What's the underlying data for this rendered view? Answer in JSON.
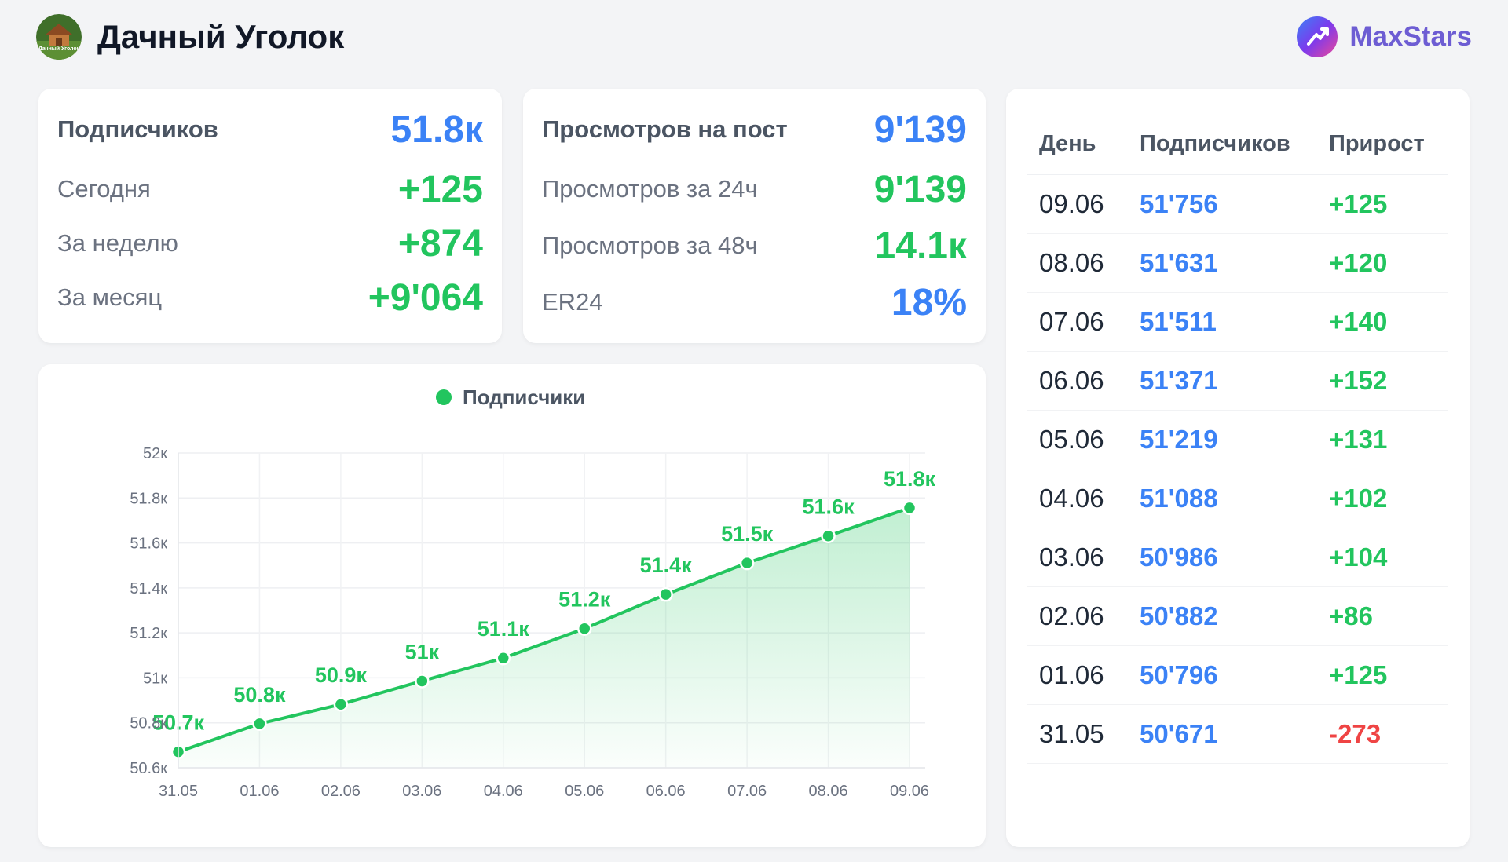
{
  "header": {
    "channel_title": "Дачный Уголок",
    "channel_logo_text": "Дачный Уголок",
    "brand_name": "MaxStars",
    "brand_color": "#6d5dd3"
  },
  "subscribers_card": {
    "title": "Подписчиков",
    "value": "51.8к",
    "rows": [
      {
        "label": "Сегодня",
        "value": "+125"
      },
      {
        "label": "За неделю",
        "value": "+874"
      },
      {
        "label": "За месяц",
        "value": "+9'064"
      }
    ]
  },
  "views_card": {
    "title": "Просмотров на пост",
    "value": "9'139",
    "rows": [
      {
        "label": "Просмотров за 24ч",
        "value": "9'139"
      },
      {
        "label": "Просмотров за 48ч",
        "value": "14.1к"
      },
      {
        "label": "ER24",
        "value": "18%"
      }
    ]
  },
  "table": {
    "headers": [
      "День",
      "Подписчиков",
      "Прирост"
    ],
    "rows": [
      {
        "day": "09.06",
        "subs": "51'756",
        "growth": "+125"
      },
      {
        "day": "08.06",
        "subs": "51'631",
        "growth": "+120"
      },
      {
        "day": "07.06",
        "subs": "51'511",
        "growth": "+140"
      },
      {
        "day": "06.06",
        "subs": "51'371",
        "growth": "+152"
      },
      {
        "day": "05.06",
        "subs": "51'219",
        "growth": "+131"
      },
      {
        "day": "04.06",
        "subs": "51'088",
        "growth": "+102"
      },
      {
        "day": "03.06",
        "subs": "50'986",
        "growth": "+104"
      },
      {
        "day": "02.06",
        "subs": "50'882",
        "growth": "+86"
      },
      {
        "day": "01.06",
        "subs": "50'796",
        "growth": "+125"
      },
      {
        "day": "31.05",
        "subs": "50'671",
        "growth": "-273"
      }
    ]
  },
  "colors": {
    "blue": "#3b82f6",
    "green": "#22c55e",
    "red": "#ef4444"
  },
  "chart_data": {
    "type": "area",
    "title": "",
    "legend": [
      "Подписчики"
    ],
    "legend_position": "top-center",
    "grid": true,
    "categories": [
      "31.05",
      "01.06",
      "02.06",
      "03.06",
      "04.06",
      "05.06",
      "06.06",
      "07.06",
      "08.06",
      "09.06"
    ],
    "series": [
      {
        "name": "Подписчики",
        "values": [
          50671,
          50796,
          50882,
          50986,
          51088,
          51219,
          51371,
          51511,
          51631,
          51756
        ],
        "labels": [
          "50.7к",
          "50.8к",
          "50.9к",
          "51к",
          "51.1к",
          "51.2к",
          "51.4к",
          "51.5к",
          "51.6к",
          "51.8к"
        ],
        "color": "#22c55e"
      }
    ],
    "ylim": [
      50600,
      52000
    ],
    "y_ticks": [
      50600,
      50800,
      51000,
      51200,
      51400,
      51600,
      51800,
      52000
    ],
    "y_tick_labels": [
      "50.6к",
      "50.8к",
      "51к",
      "51.2к",
      "51.4к",
      "51.6к",
      "51.8к",
      "52к"
    ]
  }
}
